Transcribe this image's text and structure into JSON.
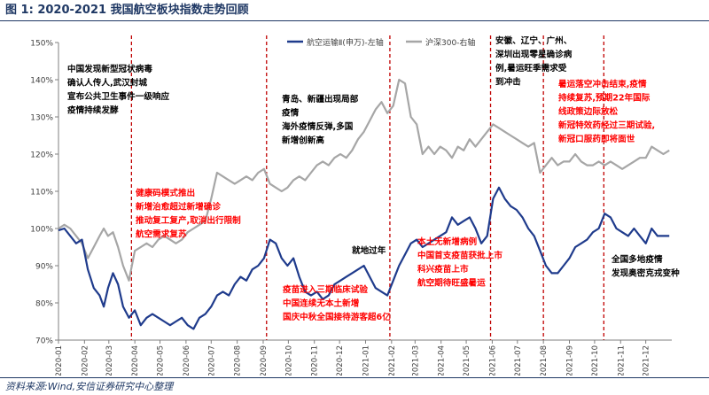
{
  "header": {
    "figure_label": "图 1:",
    "title": "2020-2021 我国航空板块指数走势回顾"
  },
  "footer": {
    "source": "资料来源:Wind,安信证券研究中心整理"
  },
  "colors": {
    "airline": "#1f3b8c",
    "csi300": "#a6a6a6",
    "annotation_red": "#ff0000",
    "annotation_black": "#000000",
    "title": "#1f3864"
  },
  "chart_data": {
    "type": "line",
    "x_type": "date",
    "x_range": [
      "2020-01-01",
      "2022-01-01"
    ],
    "xticks": [
      "2020-01",
      "2020-02",
      "2020-03",
      "2020-04",
      "2020-05",
      "2020-06",
      "2020-07",
      "2020-08",
      "2020-09",
      "2020-10",
      "2020-11",
      "2020-12",
      "2021-01",
      "2021-02",
      "2021-03",
      "2021-04",
      "2021-05",
      "2021-06",
      "2021-07",
      "2021-08",
      "2021-09",
      "2021-10",
      "2021-11",
      "2021-12"
    ],
    "ylim": [
      70,
      150
    ],
    "yticks": [
      "70%",
      "80%",
      "90%",
      "100%",
      "110%",
      "120%",
      "130%",
      "140%",
      "150%"
    ],
    "grid": false,
    "legend_position": "top",
    "series": [
      {
        "name": "航空运输Ⅱ(申万)-左轴",
        "color": "#1f3b8c",
        "points": [
          [
            "2020-01-01",
            99.5
          ],
          [
            "2020-01-08",
            100
          ],
          [
            "2020-01-15",
            98
          ],
          [
            "2020-01-22",
            96
          ],
          [
            "2020-01-29",
            97
          ],
          [
            "2020-02-05",
            89
          ],
          [
            "2020-02-12",
            84
          ],
          [
            "2020-02-19",
            82
          ],
          [
            "2020-02-24",
            79
          ],
          [
            "2020-02-29",
            84
          ],
          [
            "2020-03-06",
            88
          ],
          [
            "2020-03-12",
            85
          ],
          [
            "2020-03-18",
            79
          ],
          [
            "2020-03-25",
            76
          ],
          [
            "2020-04-01",
            78
          ],
          [
            "2020-04-08",
            74
          ],
          [
            "2020-04-15",
            76
          ],
          [
            "2020-04-22",
            77
          ],
          [
            "2020-04-29",
            76
          ],
          [
            "2020-05-06",
            75
          ],
          [
            "2020-05-13",
            74
          ],
          [
            "2020-05-20",
            75
          ],
          [
            "2020-05-27",
            76
          ],
          [
            "2020-06-03",
            74
          ],
          [
            "2020-06-10",
            73
          ],
          [
            "2020-06-17",
            76
          ],
          [
            "2020-06-24",
            77
          ],
          [
            "2020-07-01",
            79
          ],
          [
            "2020-07-08",
            82
          ],
          [
            "2020-07-15",
            83
          ],
          [
            "2020-07-22",
            82
          ],
          [
            "2020-07-29",
            85
          ],
          [
            "2020-08-05",
            87
          ],
          [
            "2020-08-12",
            86
          ],
          [
            "2020-08-19",
            89
          ],
          [
            "2020-08-26",
            90
          ],
          [
            "2020-09-02",
            92
          ],
          [
            "2020-09-09",
            97
          ],
          [
            "2020-09-16",
            96
          ],
          [
            "2020-09-23",
            92
          ],
          [
            "2020-09-30",
            90
          ],
          [
            "2020-10-07",
            92
          ],
          [
            "2020-10-14",
            87
          ],
          [
            "2020-10-21",
            83
          ],
          [
            "2020-10-28",
            82
          ],
          [
            "2020-11-04",
            83
          ],
          [
            "2020-11-11",
            81
          ],
          [
            "2020-11-18",
            82
          ],
          [
            "2020-11-25",
            85
          ],
          [
            "2020-12-02",
            86
          ],
          [
            "2020-12-09",
            87
          ],
          [
            "2020-12-16",
            88
          ],
          [
            "2020-12-23",
            89
          ],
          [
            "2020-12-30",
            90
          ],
          [
            "2021-01-06",
            87
          ],
          [
            "2021-01-13",
            84
          ],
          [
            "2021-01-20",
            83
          ],
          [
            "2021-01-27",
            82
          ],
          [
            "2021-02-03",
            86
          ],
          [
            "2021-02-10",
            90
          ],
          [
            "2021-02-17",
            93
          ],
          [
            "2021-02-24",
            96
          ],
          [
            "2021-03-03",
            97
          ],
          [
            "2021-03-10",
            95
          ],
          [
            "2021-03-17",
            96
          ],
          [
            "2021-03-24",
            97
          ],
          [
            "2021-03-31",
            98
          ],
          [
            "2021-04-07",
            99
          ],
          [
            "2021-04-14",
            103
          ],
          [
            "2021-04-21",
            101
          ],
          [
            "2021-04-28",
            102
          ],
          [
            "2021-05-05",
            103
          ],
          [
            "2021-05-12",
            100
          ],
          [
            "2021-05-19",
            96
          ],
          [
            "2021-05-26",
            98
          ],
          [
            "2021-06-02",
            108
          ],
          [
            "2021-06-09",
            111
          ],
          [
            "2021-06-16",
            108
          ],
          [
            "2021-06-23",
            106
          ],
          [
            "2021-06-30",
            105
          ],
          [
            "2021-07-07",
            103
          ],
          [
            "2021-07-14",
            100
          ],
          [
            "2021-07-21",
            98
          ],
          [
            "2021-07-28",
            94
          ],
          [
            "2021-08-04",
            90
          ],
          [
            "2021-08-11",
            88
          ],
          [
            "2021-08-18",
            88
          ],
          [
            "2021-08-25",
            90
          ],
          [
            "2021-09-01",
            92
          ],
          [
            "2021-09-08",
            95
          ],
          [
            "2021-09-15",
            96
          ],
          [
            "2021-09-22",
            97
          ],
          [
            "2021-09-29",
            99
          ],
          [
            "2021-10-06",
            100
          ],
          [
            "2021-10-13",
            104
          ],
          [
            "2021-10-20",
            103
          ],
          [
            "2021-10-27",
            100
          ],
          [
            "2021-11-03",
            99
          ],
          [
            "2021-11-10",
            98
          ],
          [
            "2021-11-17",
            100
          ],
          [
            "2021-11-24",
            98
          ],
          [
            "2021-12-01",
            96
          ],
          [
            "2021-12-08",
            100
          ],
          [
            "2021-12-15",
            98
          ],
          [
            "2021-12-22",
            98
          ],
          [
            "2021-12-29",
            98
          ]
        ]
      },
      {
        "name": "沪深300-右轴",
        "color": "#a6a6a6",
        "points": [
          [
            "2020-01-01",
            100
          ],
          [
            "2020-01-08",
            101
          ],
          [
            "2020-01-15",
            100
          ],
          [
            "2020-01-22",
            98
          ],
          [
            "2020-01-29",
            96
          ],
          [
            "2020-02-05",
            92
          ],
          [
            "2020-02-12",
            95
          ],
          [
            "2020-02-19",
            98
          ],
          [
            "2020-02-24",
            100
          ],
          [
            "2020-02-29",
            98
          ],
          [
            "2020-03-06",
            99
          ],
          [
            "2020-03-12",
            95
          ],
          [
            "2020-03-18",
            90
          ],
          [
            "2020-03-25",
            86
          ],
          [
            "2020-04-01",
            94
          ],
          [
            "2020-04-08",
            95
          ],
          [
            "2020-04-15",
            96
          ],
          [
            "2020-04-22",
            95
          ],
          [
            "2020-04-29",
            97
          ],
          [
            "2020-05-06",
            98
          ],
          [
            "2020-05-13",
            97
          ],
          [
            "2020-05-20",
            96
          ],
          [
            "2020-05-27",
            97
          ],
          [
            "2020-06-03",
            99
          ],
          [
            "2020-06-10",
            100
          ],
          [
            "2020-06-17",
            101
          ],
          [
            "2020-06-24",
            102
          ],
          [
            "2020-07-01",
            108
          ],
          [
            "2020-07-08",
            115
          ],
          [
            "2020-07-15",
            114
          ],
          [
            "2020-07-22",
            113
          ],
          [
            "2020-07-29",
            112
          ],
          [
            "2020-08-05",
            113
          ],
          [
            "2020-08-12",
            114
          ],
          [
            "2020-08-19",
            113
          ],
          [
            "2020-08-26",
            115
          ],
          [
            "2020-09-02",
            116
          ],
          [
            "2020-09-09",
            112
          ],
          [
            "2020-09-16",
            111
          ],
          [
            "2020-09-23",
            110
          ],
          [
            "2020-09-30",
            111
          ],
          [
            "2020-10-07",
            113
          ],
          [
            "2020-10-14",
            114
          ],
          [
            "2020-10-21",
            113
          ],
          [
            "2020-10-28",
            115
          ],
          [
            "2020-11-04",
            117
          ],
          [
            "2020-11-11",
            118
          ],
          [
            "2020-11-18",
            117
          ],
          [
            "2020-11-25",
            119
          ],
          [
            "2020-12-02",
            120
          ],
          [
            "2020-12-09",
            119
          ],
          [
            "2020-12-16",
            121
          ],
          [
            "2020-12-23",
            124
          ],
          [
            "2020-12-30",
            126
          ],
          [
            "2021-01-06",
            129
          ],
          [
            "2021-01-13",
            132
          ],
          [
            "2021-01-20",
            134
          ],
          [
            "2021-01-27",
            131
          ],
          [
            "2021-02-03",
            133
          ],
          [
            "2021-02-10",
            140
          ],
          [
            "2021-02-17",
            139
          ],
          [
            "2021-02-24",
            130
          ],
          [
            "2021-03-03",
            128
          ],
          [
            "2021-03-10",
            120
          ],
          [
            "2021-03-17",
            122
          ],
          [
            "2021-03-24",
            120
          ],
          [
            "2021-03-31",
            122
          ],
          [
            "2021-04-07",
            121
          ],
          [
            "2021-04-14",
            119
          ],
          [
            "2021-04-21",
            122
          ],
          [
            "2021-04-28",
            121
          ],
          [
            "2021-05-05",
            124
          ],
          [
            "2021-05-12",
            122
          ],
          [
            "2021-05-19",
            124
          ],
          [
            "2021-05-26",
            126
          ],
          [
            "2021-06-02",
            128
          ],
          [
            "2021-06-09",
            127
          ],
          [
            "2021-06-16",
            126
          ],
          [
            "2021-06-23",
            125
          ],
          [
            "2021-06-30",
            124
          ],
          [
            "2021-07-07",
            123
          ],
          [
            "2021-07-14",
            122
          ],
          [
            "2021-07-21",
            123
          ],
          [
            "2021-07-28",
            115
          ],
          [
            "2021-08-04",
            117
          ],
          [
            "2021-08-11",
            119
          ],
          [
            "2021-08-18",
            117
          ],
          [
            "2021-08-25",
            118
          ],
          [
            "2021-09-01",
            118
          ],
          [
            "2021-09-08",
            120
          ],
          [
            "2021-09-15",
            118
          ],
          [
            "2021-09-22",
            117
          ],
          [
            "2021-09-29",
            117
          ],
          [
            "2021-10-06",
            118
          ],
          [
            "2021-10-13",
            117
          ],
          [
            "2021-10-20",
            118
          ],
          [
            "2021-10-27",
            117
          ],
          [
            "2021-11-03",
            116
          ],
          [
            "2021-11-10",
            117
          ],
          [
            "2021-11-17",
            118
          ],
          [
            "2021-11-24",
            119
          ],
          [
            "2021-12-01",
            119
          ],
          [
            "2021-12-08",
            122
          ],
          [
            "2021-12-15",
            121
          ],
          [
            "2021-12-22",
            120
          ],
          [
            "2021-12-29",
            121
          ]
        ]
      }
    ],
    "event_lines": [
      "2020-03-28",
      "2020-09-05",
      "2021-01-30",
      "2021-05-30",
      "2021-08-01",
      "2021-10-12"
    ],
    "annotations": [
      {
        "id": "a1",
        "color": "black",
        "lines": [
          "中国发现新型冠状病毒",
          "确认人传人,武汉封城",
          "宣布公共卫生事件一级响应",
          "疫情持续发酵"
        ]
      },
      {
        "id": "a2",
        "color": "red",
        "lines": [
          "健康码模式推出",
          "新增治愈超过新增确诊",
          "推动复工复产,取消出行限制",
          "航空需求复苏"
        ]
      },
      {
        "id": "a3",
        "color": "black",
        "lines": [
          "青岛、新疆出现局部",
          "疫情",
          "海外疫情反弹,多国",
          "新增创新高"
        ]
      },
      {
        "id": "a4",
        "color": "red",
        "lines": [
          "疫苗进入三期临床试验",
          "中国连续无本土新增",
          "国庆中秋全国接待游客超6亿"
        ]
      },
      {
        "id": "a5",
        "color": "black",
        "lines": [
          "就地过年"
        ]
      },
      {
        "id": "a6",
        "color": "red",
        "lines": [
          "本土无新增病例",
          "中国首支疫苗获批上市",
          "科兴疫苗上市",
          "航空期待旺盛暑运"
        ]
      },
      {
        "id": "a7",
        "color": "black",
        "lines": [
          "安徽、辽宁、广州、",
          "深圳出现零星确诊病",
          "例,暑运旺季需求受",
          "到冲击"
        ]
      },
      {
        "id": "a8",
        "color": "red",
        "lines": [
          "暑运落空冲击结束,疫情",
          "持续复苏,预期22年国际",
          "线政策边际放松",
          "新冠特效药经过三期试验,",
          "新冠口服药即将面世"
        ]
      },
      {
        "id": "a9",
        "color": "black",
        "lines": [
          "全国多地疫情",
          "发现奥密克戎变种"
        ]
      }
    ]
  }
}
